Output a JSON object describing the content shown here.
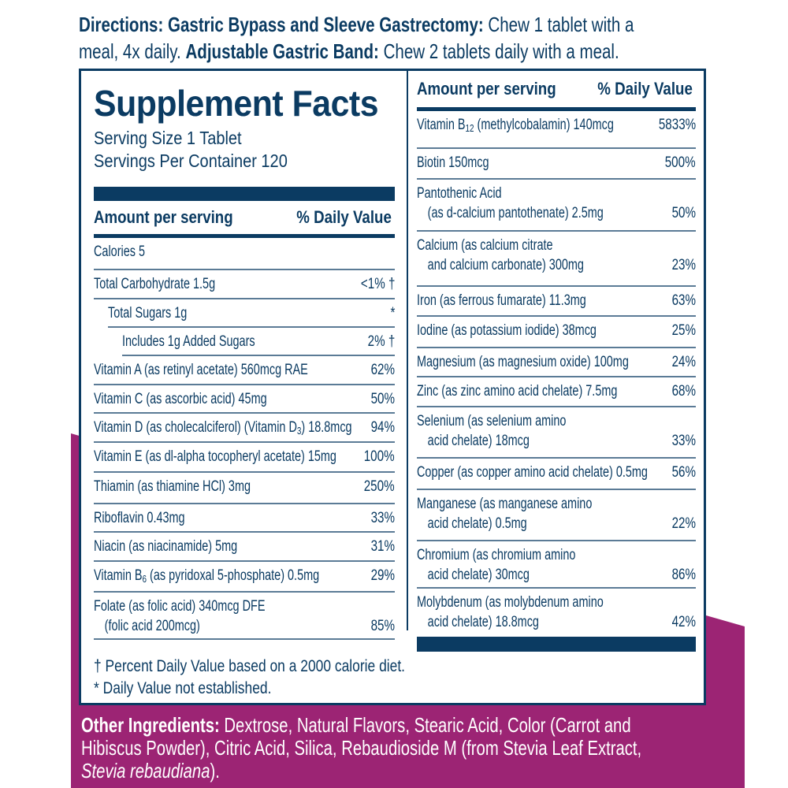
{
  "colors": {
    "navy": "#0b3b62",
    "purple": "#9c2474"
  },
  "directions": {
    "line1_bold_a": "Directions: Gastric Bypass and Sleeve Gastrectomy:",
    "line1_text": " Chew 1 tablet with a",
    "line2_text_a": "meal, 4x daily. ",
    "line2_bold": "Adjustable Gastric Band:",
    "line2_text_b": " Chew 2 tablets daily with a meal."
  },
  "facts": {
    "title": "Supplement Facts",
    "serving_size": "Serving Size 1 Tablet",
    "servings_per_container": "Servings Per Container 120",
    "amount_header": "Amount per serving",
    "dv_header": "% Daily Value",
    "left_rows": [
      {
        "pre": "Calories 5",
        "sub": "",
        "post": "",
        "value": "",
        "indent": 0,
        "h": 41
      },
      {
        "pre": "Total Carbohydrate 1.5g",
        "sub": "",
        "post": "",
        "value": "<1% †",
        "indent": 0,
        "h": 37
      },
      {
        "pre": "Total Sugars 1g",
        "sub": "",
        "post": "",
        "value": "*",
        "indent": 18,
        "h": 36
      },
      {
        "pre": "Includes 1g Added Sugars",
        "sub": "",
        "post": "",
        "value": "2% †",
        "indent": 36,
        "h": 36
      },
      {
        "pre": "Vitamin A (as retinyl acetate) 560mcg RAE",
        "sub": "",
        "post": "",
        "value": "62%",
        "indent": 0,
        "h": 37
      },
      {
        "pre": "Vitamin C (as ascorbic acid) 45mg",
        "sub": "",
        "post": "",
        "value": "50%",
        "indent": 0,
        "h": 36
      },
      {
        "pre": "Vitamin D (as cholecalciferol) (Vitamin D",
        "sub": "3",
        "post": ") 18.8mcg",
        "value": "94%",
        "indent": 0,
        "h": 37
      },
      {
        "pre": "Vitamin E (as dl-alpha tocopheryl acetate) 15mg",
        "sub": "",
        "post": "",
        "value": "100%",
        "indent": 0,
        "h": 38
      },
      {
        "pre": "Thiamin (as thiamine HCl) 3mg",
        "sub": "",
        "post": "",
        "value": "250%",
        "indent": 0,
        "h": 40
      },
      {
        "pre": "Riboflavin 0.43mg",
        "sub": "",
        "post": "",
        "value": "33%",
        "indent": 0,
        "h": 36
      },
      {
        "pre": "Niacin (as niacinamide) 5mg",
        "sub": "",
        "post": "",
        "value": "31%",
        "indent": 0,
        "h": 37
      },
      {
        "pre": "Vitamin B",
        "sub": "6",
        "post": " (as pyridoxal 5-phosphate) 0.5mg",
        "value": "29%",
        "indent": 0,
        "h": 39
      },
      {
        "pre": "Folate (as folic acid) 340mcg DFE",
        "line2": "(folic acid 200mcg)",
        "sub": "",
        "post": "",
        "value": "85%",
        "indent": 0,
        "h": 60
      }
    ],
    "right_rows": [
      {
        "pre": "Vitamin B",
        "sub": "12",
        "post": " (methylcobalamin) 140mcg",
        "value": "5833%",
        "h": 48
      },
      {
        "pre": "Biotin 150mcg",
        "sub": "",
        "post": "",
        "value": "500%",
        "h": 39
      },
      {
        "pre": "Pantothenic Acid",
        "line2": "(as d-calcium pantothenate) 2.5mg",
        "sub": "",
        "post": "",
        "value": "50%",
        "h": 66
      },
      {
        "pre": "Calcium (as calcium citrate",
        "line2": "and calcium carbonate) 300mg",
        "sub": "",
        "post": "",
        "value": "23%",
        "h": 70
      },
      {
        "pre": "Iron (as ferrous fumarate) 11.3mg",
        "sub": "",
        "post": "",
        "value": "63%",
        "h": 38
      },
      {
        "pre": "Iodine (as potassium iodide) 38mcg",
        "sub": "",
        "post": "",
        "value": "25%",
        "h": 40
      },
      {
        "pre": "Magnesium (as magnesium oxide) 100mg",
        "sub": "",
        "post": "",
        "value": "24%",
        "h": 37
      },
      {
        "pre": "Zinc (as zinc amino acid chelate) 7.5mg",
        "sub": "",
        "post": "",
        "value": "68%",
        "h": 38
      },
      {
        "pre": "Selenium (as selenium amino",
        "line2": "acid chelate) 18mcg",
        "sub": "",
        "post": "",
        "value": "33%",
        "h": 65
      },
      {
        "pre": "Copper (as copper amino acid chelate) 0.5mg",
        "sub": "",
        "post": "",
        "value": "56%",
        "h": 40
      },
      {
        "pre": "Manganese (as manganese amino",
        "line2": "acid chelate) 0.5mg",
        "sub": "",
        "post": "",
        "value": "22%",
        "h": 65
      },
      {
        "pre": "Chromium (as chromium amino",
        "line2": "acid chelate) 30mcg",
        "sub": "",
        "post": "",
        "value": "86%",
        "h": 60
      },
      {
        "pre": "Molybdenum (as molybdenum amino",
        "line2": "acid chelate) 18.8mcg",
        "sub": "",
        "post": "",
        "value": "42%",
        "h": 62
      }
    ],
    "footnote_dagger": "† Percent Daily Value based on a 2000 calorie diet.",
    "footnote_star": "* Daily Value not established."
  },
  "ingredients": {
    "label": "Other Ingredients:",
    "line1": " Dextrose, Natural Flavors, Stearic Acid, Color (Carrot and",
    "line2": "Hibiscus Powder), Citric Acid, Silica, Rebaudioside M (from Stevia Leaf Extract,",
    "line3_italic": "Stevia rebaudiana",
    "line3_end": ")."
  }
}
